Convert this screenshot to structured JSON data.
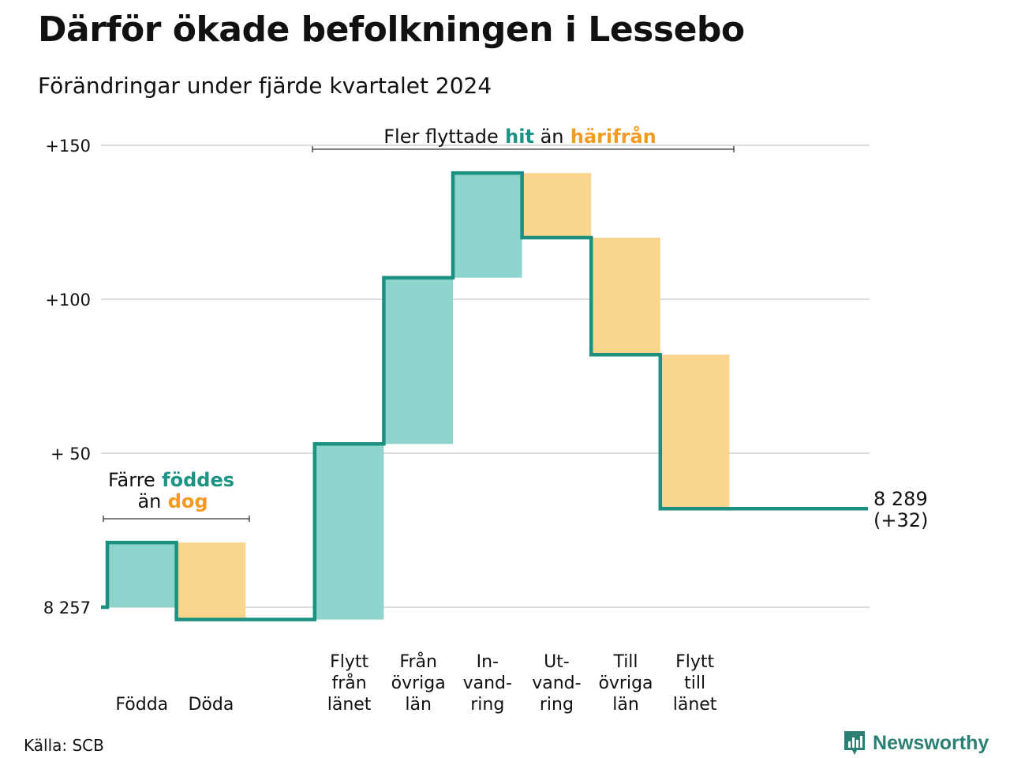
{
  "title": "Därför ökade befolkningen i Lessebo",
  "subtitle": "Förändringar under fjärde kvartalet 2024",
  "source": "Källa: SCB",
  "brand": "Newsworthy",
  "colors": {
    "inflow": "#8dd5cc",
    "outflow": "#fad58d",
    "line": "#1b8f80",
    "inflow_text": "#1b9485",
    "outflow_text": "#f59b21",
    "grid": "#dcdcdc"
  },
  "annotations": {
    "births": {
      "pre": "Färre",
      "hl1": "föddes",
      "mid": "än",
      "hl2": "dog"
    },
    "moves": {
      "pre": "Fler flyttade",
      "hl1": "hit",
      "mid": "än",
      "hl2": "härifrån"
    }
  },
  "chart_data": {
    "type": "waterfall",
    "y_tick_labels": [
      "8 257",
      "+ 50",
      "+100",
      "+150"
    ],
    "y_tick_values": [
      0,
      50,
      100,
      150
    ],
    "ylim": [
      0,
      150
    ],
    "grid": true,
    "start_value": 8257,
    "end_label": "8 289",
    "end_change_label": "(+32)",
    "steps": [
      {
        "label": [
          "Födda"
        ],
        "kind": "in",
        "value": 21
      },
      {
        "label": [
          "Döda"
        ],
        "kind": "out",
        "value": -25
      },
      {
        "label": [],
        "kind": "none",
        "value": 0
      },
      {
        "label": [
          "Flytt",
          "från",
          "länet"
        ],
        "kind": "in",
        "value": 57
      },
      {
        "label": [
          "Från",
          "övriga",
          "län"
        ],
        "kind": "in",
        "value": 54
      },
      {
        "label": [
          "In-",
          "vand-",
          "ring"
        ],
        "kind": "in",
        "value": 34
      },
      {
        "label": [
          "Ut-",
          "vand-",
          "ring"
        ],
        "kind": "out",
        "value": -21
      },
      {
        "label": [
          "Till",
          "övriga",
          "län"
        ],
        "kind": "out",
        "value": -38
      },
      {
        "label": [
          "Flytt",
          "till",
          "länet"
        ],
        "kind": "out",
        "value": -50
      }
    ],
    "end_value": 32
  }
}
